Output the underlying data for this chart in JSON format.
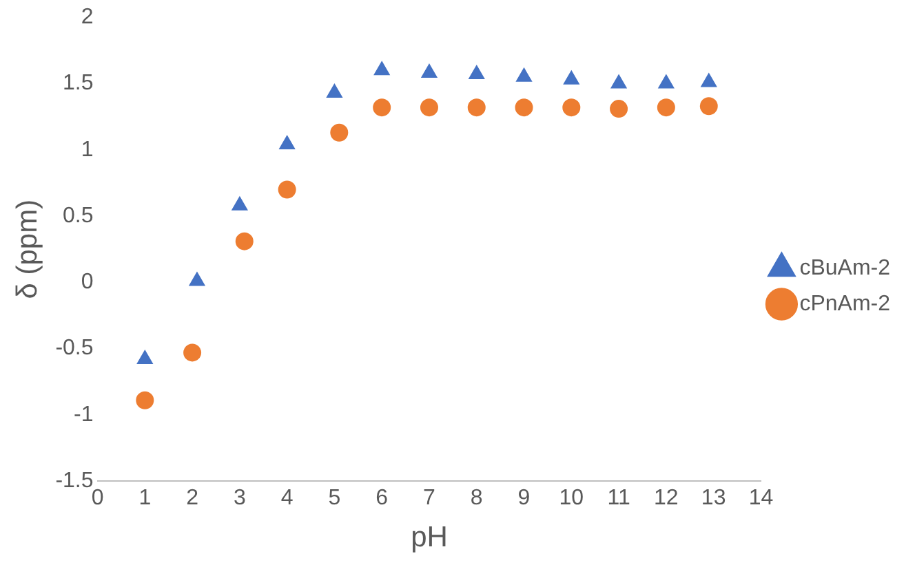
{
  "chart_data": {
    "type": "scatter",
    "xlabel": "pH",
    "ylabel": "δ (ppm)",
    "xlim": [
      0,
      14
    ],
    "xticks": [
      0,
      1,
      2,
      3,
      4,
      5,
      6,
      7,
      8,
      9,
      10,
      11,
      12,
      13,
      14
    ],
    "ylim": [
      -1.5,
      2
    ],
    "yticks": [
      -1.5,
      -1,
      -0.5,
      0,
      0.5,
      1,
      1.5,
      2
    ],
    "grid": false,
    "legend": "right",
    "series": [
      {
        "name": "cBuAm-2",
        "color": "#4472c4",
        "marker": "triangle",
        "x": [
          1,
          2.1,
          3,
          4,
          5,
          6,
          7,
          8,
          9,
          10,
          11,
          12,
          12.9
        ],
        "values": [
          -0.58,
          0.01,
          0.58,
          1.04,
          1.43,
          1.6,
          1.58,
          1.57,
          1.55,
          1.53,
          1.5,
          1.5,
          1.51
        ]
      },
      {
        "name": "cPnAm-2",
        "color": "#ed7d31",
        "marker": "circle",
        "x": [
          1,
          2,
          3.1,
          4,
          5.1,
          6,
          7,
          8,
          9,
          10,
          11,
          12,
          12.9
        ],
        "values": [
          -0.89,
          -0.53,
          0.31,
          0.7,
          1.13,
          1.32,
          1.32,
          1.32,
          1.32,
          1.32,
          1.31,
          1.32,
          1.33
        ]
      }
    ]
  }
}
